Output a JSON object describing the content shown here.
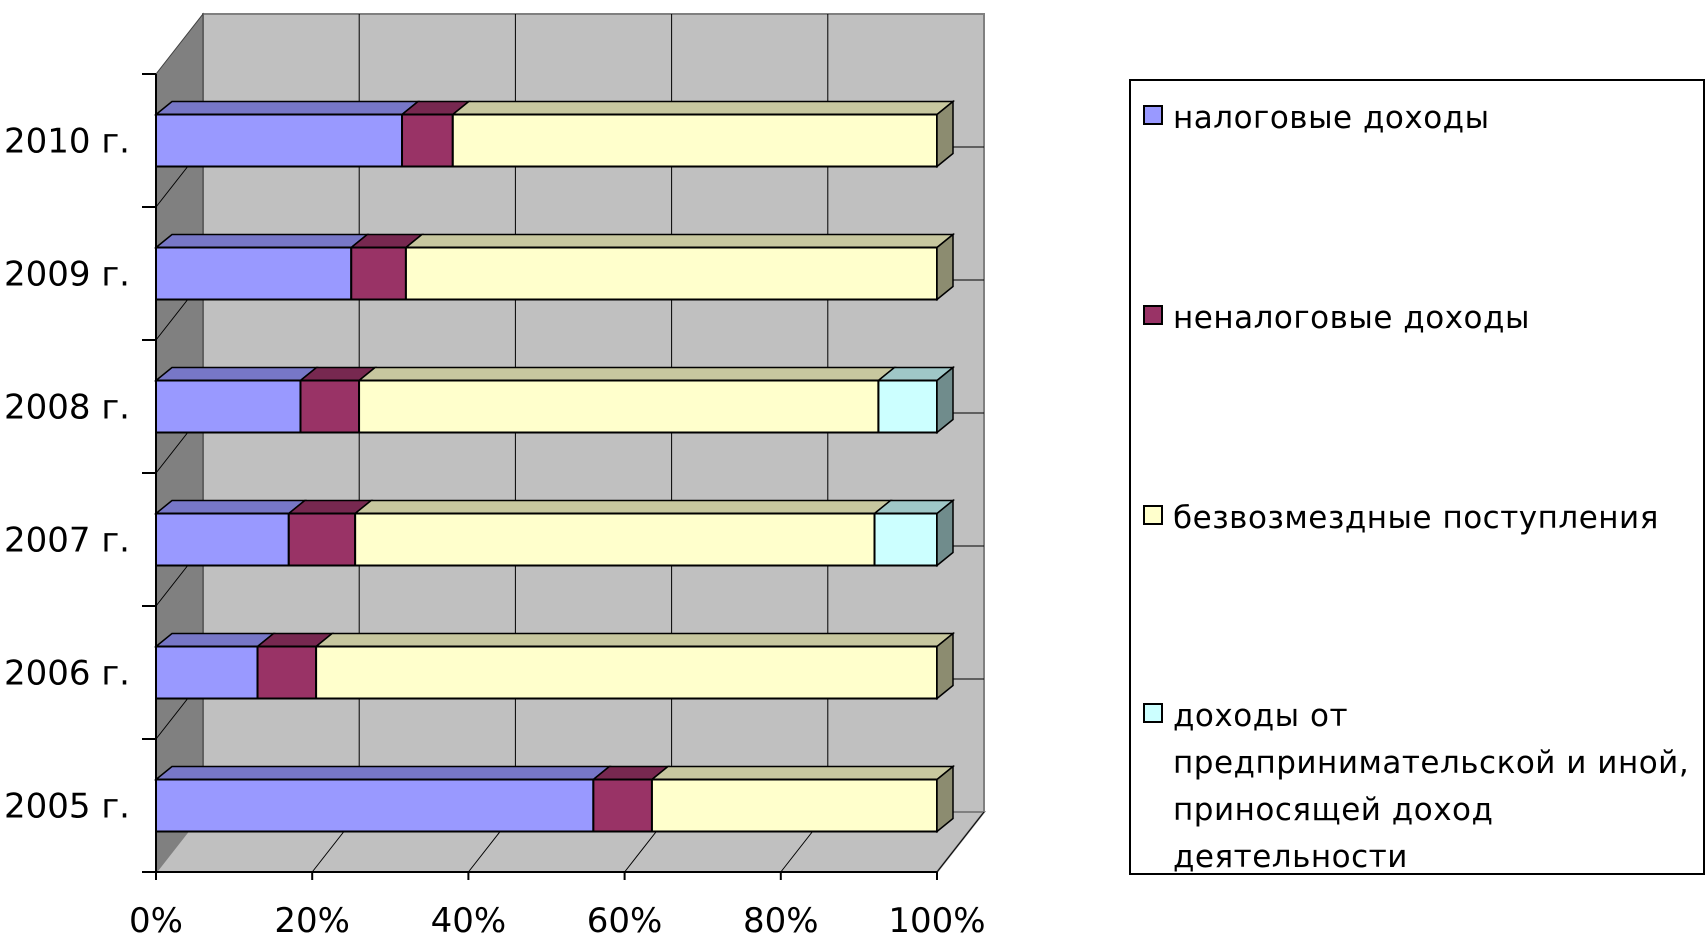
{
  "chart_data": {
    "type": "bar",
    "orientation": "horizontal",
    "stacked": "percent",
    "style": "3d",
    "categories": [
      "2005 г.",
      "2006 г.",
      "2007 г.",
      "2008 г.",
      "2009 г.",
      "2010 г."
    ],
    "series": [
      {
        "name": "налоговые доходы",
        "color": "#9999ff",
        "values": [
          56,
          13,
          17,
          18.5,
          25,
          31.5
        ]
      },
      {
        "name": "неналоговые доходы",
        "color": "#993366",
        "values": [
          7.5,
          7.5,
          8.5,
          7.5,
          7,
          6.5
        ]
      },
      {
        "name": "безвозмездные поступления",
        "color": "#ffffcc",
        "values": [
          36.5,
          79.5,
          66.5,
          66.5,
          68,
          62
        ]
      },
      {
        "name": "доходы от предпринимательской и иной, приносящей доход деятельности",
        "color": "#ccffff",
        "values": [
          0,
          0,
          8,
          7.5,
          0,
          0
        ]
      }
    ],
    "x_ticks": [
      "0%",
      "20%",
      "40%",
      "60%",
      "80%",
      "100%"
    ],
    "xlim": [
      0,
      100
    ],
    "title": "",
    "xlabel": "",
    "ylabel": "",
    "grid": true,
    "legend_position": "right"
  }
}
